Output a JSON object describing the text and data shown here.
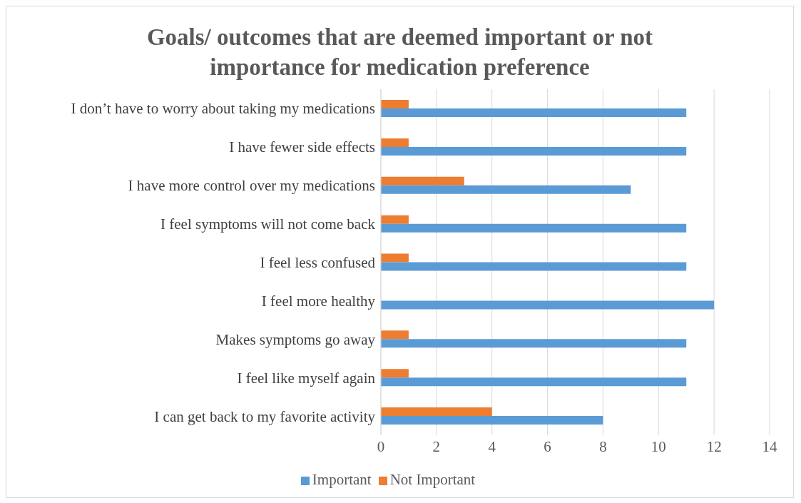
{
  "chart_data": {
    "type": "bar",
    "orientation": "horizontal",
    "title": "Goals/ outcomes that are deemed important or not importance for medication preference",
    "categories": [
      "I don’t have to worry about taking my medications",
      "I have fewer side effects ",
      "I have more control over my medications ",
      "I feel symptoms will not come back",
      "I feel less confused ",
      "I feel more healthy",
      "Makes symptoms go away",
      "I feel like myself again",
      "I can get back to my favorite activity"
    ],
    "series": [
      {
        "name": "Not Important",
        "color": "#ed7d31",
        "values": [
          1,
          1,
          3,
          1,
          1,
          null,
          1,
          1,
          4
        ]
      },
      {
        "name": "Important",
        "color": "#5b9bd5",
        "values": [
          11,
          11,
          9,
          11,
          11,
          12,
          11,
          11,
          8
        ]
      }
    ],
    "xlim": [
      0,
      14
    ],
    "xticks": [
      0,
      2,
      4,
      6,
      8,
      10,
      12,
      14
    ],
    "grid": "x",
    "legend": "bottom"
  }
}
